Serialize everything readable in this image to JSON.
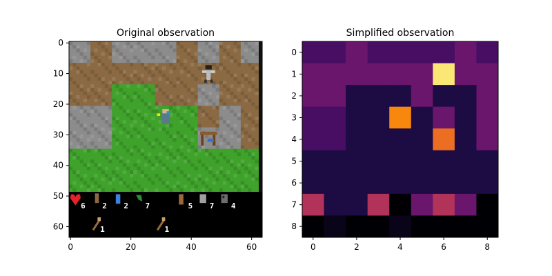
{
  "panels": [
    {
      "title": "Original observation",
      "kind": "rendered-frame",
      "x_ticks": [
        "0",
        "20",
        "40",
        "60"
      ],
      "y_ticks": [
        "0",
        "10",
        "20",
        "30",
        "40",
        "50",
        "60"
      ],
      "x_tick_values": [
        0,
        20,
        40,
        60
      ],
      "y_tick_values": [
        0,
        10,
        20,
        30,
        40,
        50,
        60
      ],
      "xlim": [
        -0.5,
        63.5
      ],
      "ylim": [
        63.5,
        -0.5
      ],
      "world_tiles": [
        [
          "stone",
          "path",
          "stone",
          "stone",
          "stone",
          "path",
          "stone",
          "path",
          "stone"
        ],
        [
          "path",
          "path",
          "path",
          "path",
          "path",
          "path",
          "skeleton",
          "path",
          "path"
        ],
        [
          "path",
          "path",
          "grass",
          "grass",
          "path",
          "path",
          "stone",
          "path",
          "path"
        ],
        [
          "stone",
          "stone",
          "grass",
          "grass",
          "player",
          "grass",
          "path",
          "stone",
          "path"
        ],
        [
          "stone",
          "stone",
          "grass",
          "grass",
          "grass",
          "grass",
          "table",
          "stone",
          "path"
        ],
        [
          "grass",
          "grass",
          "grass",
          "grass",
          "grass",
          "grass",
          "grass",
          "grass",
          "grass"
        ],
        [
          "grass",
          "grass",
          "grass",
          "grass",
          "grass",
          "grass",
          "grass",
          "grass",
          "grass"
        ]
      ],
      "inventory_row_1": [
        {
          "icon": "health-heart-icon",
          "count": "6"
        },
        {
          "icon": "food-icon",
          "count": "2"
        },
        {
          "icon": "drink-icon",
          "count": "2"
        },
        {
          "icon": "energy-icon",
          "count": "7"
        },
        {
          "icon": "empty",
          "count": ""
        },
        {
          "icon": "wood-icon",
          "count": "5"
        },
        {
          "icon": "stone-icon",
          "count": "7"
        },
        {
          "icon": "coal-icon",
          "count": "4"
        }
      ],
      "inventory_row_2": [
        {
          "icon": "wood-pickaxe-icon",
          "count": "1"
        },
        {
          "icon": "wood-sword-icon",
          "count": "1"
        }
      ]
    },
    {
      "title": "Simplified observation",
      "kind": "heatmap",
      "x_ticks": [
        "0",
        "2",
        "4",
        "6",
        "8"
      ],
      "y_ticks": [
        "0",
        "1",
        "2",
        "3",
        "4",
        "5",
        "6",
        "7",
        "8"
      ],
      "x_tick_values": [
        0,
        2,
        4,
        6,
        8
      ],
      "y_tick_values": [
        0,
        1,
        2,
        3,
        4,
        5,
        6,
        7,
        8
      ]
    }
  ],
  "chart_data": {
    "type": "heatmap",
    "title": "Simplified observation",
    "colormap": "inferno",
    "xlim": [
      -0.5,
      8.5
    ],
    "ylim": [
      8.5,
      -0.5
    ],
    "grid": false,
    "rows": [
      [
        0.22,
        0.22,
        0.3,
        0.22,
        0.22,
        0.22,
        0.22,
        0.3,
        0.22
      ],
      [
        0.3,
        0.3,
        0.3,
        0.3,
        0.3,
        0.3,
        0.95,
        0.3,
        0.3
      ],
      [
        0.3,
        0.3,
        0.12,
        0.12,
        0.12,
        0.3,
        0.12,
        0.12,
        0.3
      ],
      [
        0.22,
        0.22,
        0.12,
        0.12,
        0.74,
        0.12,
        0.3,
        0.12,
        0.3
      ],
      [
        0.22,
        0.22,
        0.12,
        0.12,
        0.12,
        0.12,
        0.68,
        0.12,
        0.3
      ],
      [
        0.12,
        0.12,
        0.12,
        0.12,
        0.12,
        0.12,
        0.12,
        0.12,
        0.12
      ],
      [
        0.12,
        0.12,
        0.12,
        0.12,
        0.12,
        0.12,
        0.12,
        0.12,
        0.12
      ],
      [
        0.48,
        0.12,
        0.12,
        0.48,
        0.0,
        0.3,
        0.48,
        0.3,
        0.0
      ],
      [
        0.0,
        0.04,
        0.0,
        0.0,
        0.04,
        0.0,
        0.0,
        0.0,
        0.0
      ]
    ]
  },
  "colors": {
    "stone": "#8c8c8c",
    "path": "#8b6a43",
    "grass": "#3fa22b",
    "inventory_bg": "#000000",
    "edge": "#000000"
  }
}
